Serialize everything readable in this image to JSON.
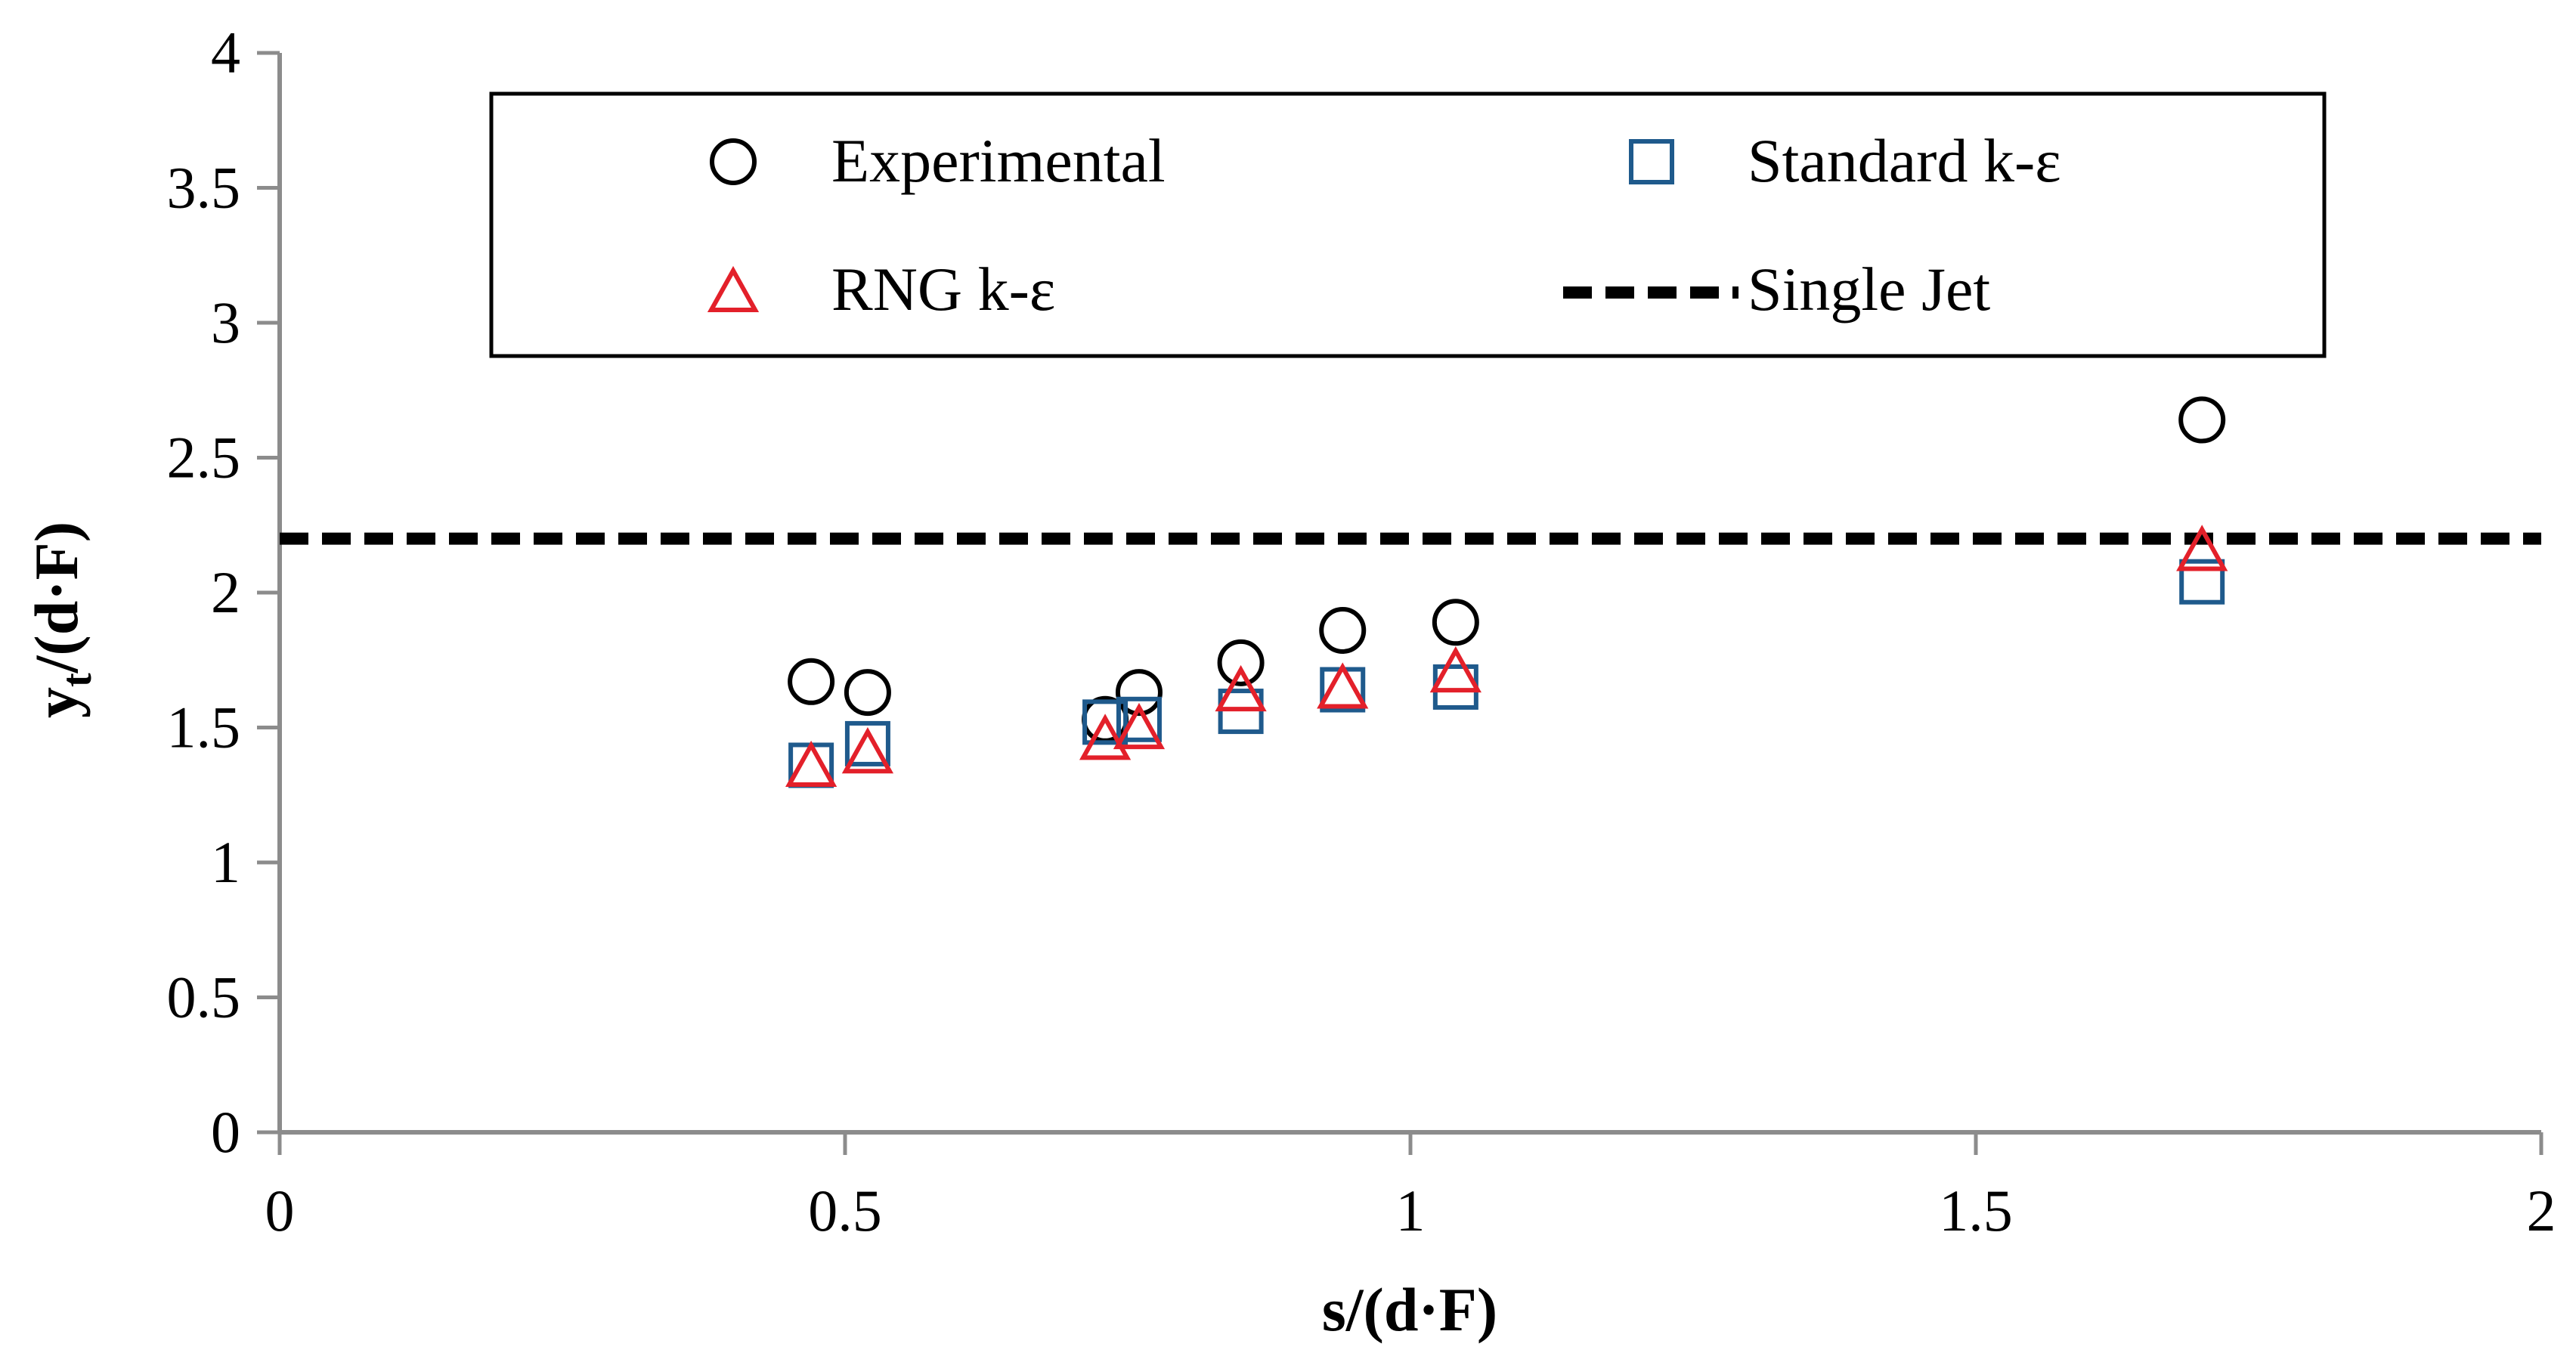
{
  "chart_data": {
    "type": "scatter",
    "title": "",
    "xlabel": "s/(d·F)",
    "ylabel_main": "y",
    "ylabel_sub": "t",
    "ylabel_rest": "/(d·F)",
    "xlim": [
      0,
      2
    ],
    "ylim": [
      0,
      4
    ],
    "xticks": [
      0,
      0.5,
      1,
      1.5,
      2
    ],
    "yticks": [
      0,
      0.5,
      1,
      1.5,
      2,
      2.5,
      3,
      3.5,
      4
    ],
    "xtick_labels": [
      "0",
      "0.5",
      "1",
      "1.5",
      "2"
    ],
    "ytick_labels": [
      "0",
      "0.5",
      "1",
      "1.5",
      "2",
      "2.5",
      "3",
      "3.5",
      "4"
    ],
    "grid": false,
    "legend_position": "top",
    "series": [
      {
        "name": "Experimental",
        "marker": "circle",
        "color": "#000000",
        "points": [
          [
            0.47,
            1.67
          ],
          [
            0.52,
            1.63
          ],
          [
            0.73,
            1.53
          ],
          [
            0.76,
            1.63
          ],
          [
            0.85,
            1.74
          ],
          [
            0.94,
            1.86
          ],
          [
            1.04,
            1.89
          ],
          [
            1.7,
            2.64
          ]
        ]
      },
      {
        "name": "Standard k-ε",
        "marker": "square",
        "color": "#1f5a8c",
        "points": [
          [
            0.47,
            1.36
          ],
          [
            0.52,
            1.44
          ],
          [
            0.73,
            1.52
          ],
          [
            0.76,
            1.53
          ],
          [
            0.85,
            1.56
          ],
          [
            0.94,
            1.64
          ],
          [
            1.04,
            1.65
          ],
          [
            1.7,
            2.04
          ]
        ]
      },
      {
        "name": "RNG k-ε",
        "marker": "triangle",
        "color": "#e3202a",
        "points": [
          [
            0.47,
            1.35
          ],
          [
            0.52,
            1.4
          ],
          [
            0.73,
            1.45
          ],
          [
            0.76,
            1.49
          ],
          [
            0.85,
            1.63
          ],
          [
            0.94,
            1.64
          ],
          [
            1.04,
            1.7
          ],
          [
            1.7,
            2.15
          ]
        ]
      },
      {
        "name": "Single Jet",
        "marker": "dashed-line",
        "color": "#000000",
        "y": 2.2
      }
    ]
  }
}
